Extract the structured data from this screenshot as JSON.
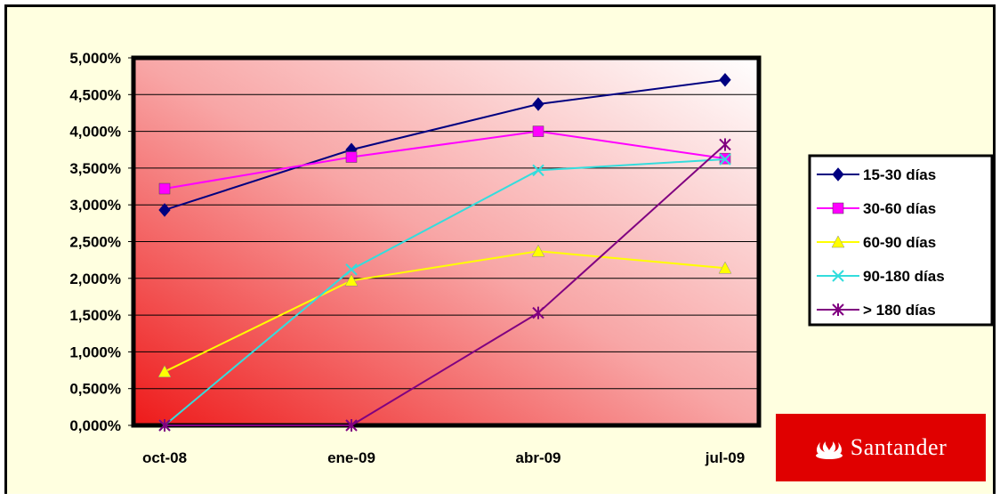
{
  "chart_data": {
    "type": "line",
    "categories": [
      "oct-08",
      "ene-09",
      "abr-09",
      "jul-09"
    ],
    "ylim": [
      0,
      5
    ],
    "yticks": [
      "0,000%",
      "0,500%",
      "1,000%",
      "1,500%",
      "2,000%",
      "2,500%",
      "3,000%",
      "3,500%",
      "4,000%",
      "4,500%",
      "5,000%"
    ],
    "grid": true,
    "legend_position": "right",
    "series": [
      {
        "name": "15-30 días",
        "values": [
          2.93,
          3.75,
          4.37,
          4.7
        ],
        "color": "#000080",
        "marker": "diamond"
      },
      {
        "name": "30-60 días",
        "values": [
          3.22,
          3.65,
          4.0,
          3.63
        ],
        "color": "#ff00ff",
        "marker": "square"
      },
      {
        "name": "60-90 días",
        "values": [
          0.73,
          1.97,
          2.37,
          2.14
        ],
        "color": "#ffff00",
        "marker": "triangle"
      },
      {
        "name": "90-180 días",
        "values": [
          0.0,
          2.12,
          3.47,
          3.62
        ],
        "color": "#33dddd",
        "marker": "x"
      },
      {
        "name": "> 180 días",
        "values": [
          0.0,
          0.0,
          1.53,
          3.82
        ],
        "color": "#800080",
        "marker": "star"
      }
    ]
  },
  "logo": {
    "text": "Santander",
    "background": "#e00000"
  }
}
